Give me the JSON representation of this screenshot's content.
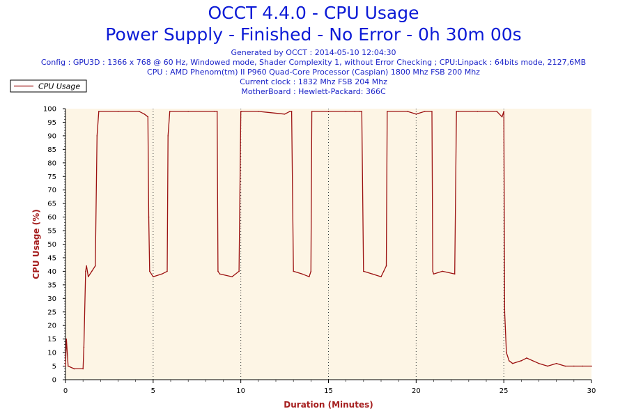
{
  "header": {
    "title": "OCCT 4.4.0 - CPU Usage",
    "subtitle": "Power Supply - Finished - No Error - 0h 30m 00s",
    "info": [
      "Generated by OCCT : 2014-05-10 12:04:30",
      "Config : GPU3D : 1366 x 768 @ 60 Hz, Windowed mode, Shader Complexity 1, without Error Checking ; CPU:Linpack : 64bits mode, 2127,6MB",
      "CPU : AMD Phenom(tm) II P960 Quad-Core Processor (Caspian) 1800 Mhz FSB 200 Mhz",
      "Current clock : 1832 Mhz FSB 204 Mhz",
      "MotherBoard : Hewlett-Packard: 366C"
    ]
  },
  "colors": {
    "series": "#9b1010",
    "plot_bg": "#fdf5e5",
    "title": "#0c1bd6",
    "axis_title": "#a51e1e"
  },
  "chart_data": {
    "type": "line",
    "title": "OCCT 4.4.0 - CPU Usage",
    "xlabel": "Duration (Minutes)",
    "ylabel": "CPU Usage (%)",
    "xlim": [
      0,
      30
    ],
    "ylim": [
      0,
      100
    ],
    "xticks": [
      0,
      5,
      10,
      15,
      20,
      25,
      30
    ],
    "yticks": [
      0,
      5,
      10,
      15,
      20,
      25,
      30,
      35,
      40,
      45,
      50,
      55,
      60,
      65,
      70,
      75,
      80,
      85,
      90,
      95,
      100
    ],
    "vertical_gridlines_at": [
      5,
      10,
      15,
      20,
      25
    ],
    "legend": {
      "position": "top-left"
    },
    "series": [
      {
        "name": "CPU Usage",
        "x": [
          0,
          0.05,
          0.15,
          0.5,
          1.0,
          1.05,
          1.15,
          1.2,
          1.3,
          1.5,
          1.7,
          1.8,
          1.9,
          3.0,
          4.2,
          4.5,
          4.7,
          4.75,
          4.8,
          5.0,
          5.5,
          5.8,
          5.85,
          5.95,
          7.0,
          8.5,
          8.65,
          8.7,
          8.8,
          9.5,
          9.9,
          10.0,
          10.05,
          11.0,
          12.5,
          12.8,
          12.9,
          13.0,
          13.5,
          13.9,
          14.0,
          14.05,
          15.0,
          16.0,
          16.5,
          16.8,
          16.9,
          17.0,
          17.5,
          18.0,
          18.15,
          18.3,
          18.35,
          19.5,
          20.0,
          20.5,
          20.9,
          20.95,
          21.0,
          21.5,
          22.2,
          22.3,
          22.4,
          23.5,
          24.6,
          24.9,
          25.0,
          25.05,
          25.15,
          25.3,
          25.5,
          26.0,
          26.3,
          27.0,
          27.5,
          28.0,
          28.5,
          29.0,
          29.5,
          30.0
        ],
        "values": [
          5,
          15,
          5,
          4,
          4,
          12,
          40,
          42,
          38,
          40,
          42,
          90,
          99,
          99,
          99,
          98,
          97,
          60,
          40,
          38,
          39,
          40,
          90,
          99,
          99,
          99,
          99,
          40,
          39,
          38,
          40,
          99,
          99,
          99,
          98,
          99,
          99,
          40,
          39,
          38,
          40,
          99,
          99,
          99,
          99,
          99,
          99,
          40,
          39,
          38,
          40,
          42,
          99,
          99,
          98,
          99,
          99,
          40,
          39,
          40,
          39,
          99,
          99,
          99,
          99,
          97,
          99,
          25,
          10,
          7,
          6,
          7,
          8,
          6,
          5,
          6,
          5,
          5,
          5,
          5
        ]
      }
    ]
  }
}
